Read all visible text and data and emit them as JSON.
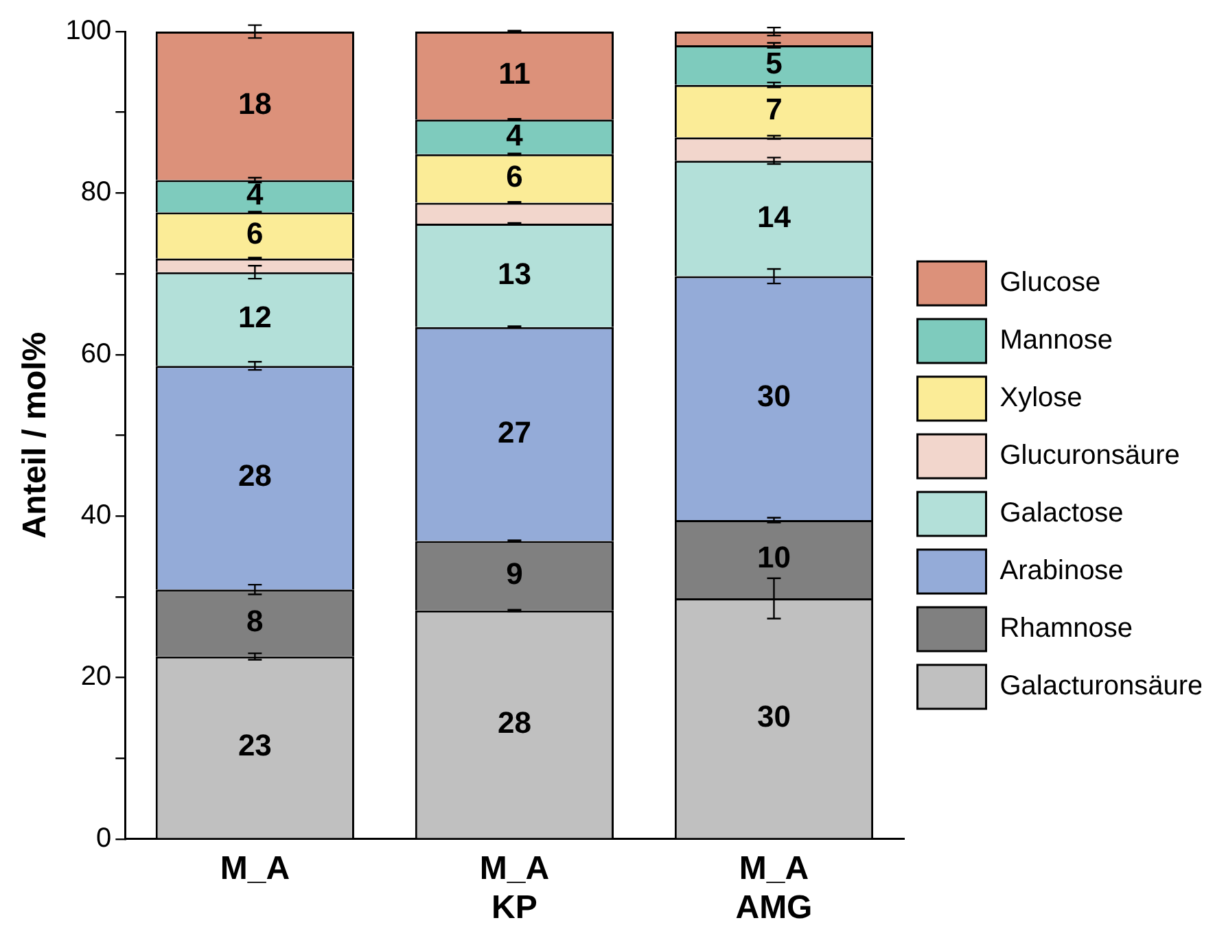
{
  "chart_data": {
    "type": "bar",
    "stacked": true,
    "ylabel": "Anteil / mol%",
    "categories": [
      "M_A",
      "M_A KP",
      "M_A AMG"
    ],
    "ylim": [
      0,
      100
    ],
    "yticks": [
      0,
      {
        "value": 10,
        "label": null
      },
      20,
      {
        "value": 30,
        "label": null
      },
      40,
      {
        "value": 50,
        "label": null
      },
      60,
      {
        "value": 70,
        "label": null
      },
      80,
      {
        "value": 90,
        "label": null
      },
      100
    ],
    "grid": false,
    "legend": "right",
    "series": [
      {
        "name": "Galacturonsäure",
        "color": "#c0c0c0",
        "values": [
          22.6,
          28.3,
          29.8
        ],
        "errors": [
          0.4,
          0.1,
          2.5
        ],
        "value_labels": [
          "23",
          "28",
          "30"
        ]
      },
      {
        "name": "Rhamnose",
        "color": "#808080",
        "values": [
          8.3,
          8.6,
          9.7
        ],
        "errors": [
          0.6,
          0.1,
          0.3
        ],
        "value_labels": [
          "8",
          "9",
          "10"
        ]
      },
      {
        "name": "Arabinose",
        "color": "#94abd8",
        "values": [
          27.7,
          26.5,
          30.2
        ],
        "errors": [
          0.5,
          0.1,
          0.9
        ],
        "value_labels": [
          "28",
          "27",
          "30"
        ]
      },
      {
        "name": "Galactose",
        "color": "#b3e0d9",
        "values": [
          11.6,
          12.8,
          14.3
        ],
        "errors": [
          0.8,
          0.1,
          0.4
        ],
        "value_labels": [
          "12",
          "13",
          "14"
        ]
      },
      {
        "name": "Glucuronsäure",
        "color": "#f2d6cc",
        "values": [
          1.7,
          2.6,
          2.9
        ],
        "errors": [
          0.1,
          0.1,
          0.2
        ],
        "value_labels": [
          null,
          null,
          null
        ]
      },
      {
        "name": "Xylose",
        "color": "#fbec97",
        "values": [
          5.7,
          6.0,
          6.5
        ],
        "errors": [
          0.1,
          0.1,
          0.3
        ],
        "value_labels": [
          "6",
          "6",
          "7"
        ]
      },
      {
        "name": "Mannose",
        "color": "#7ecbbd",
        "values": [
          4.0,
          4.3,
          4.9
        ],
        "errors": [
          0.3,
          0.1,
          0.3
        ],
        "value_labels": [
          "4",
          "4",
          "5"
        ]
      },
      {
        "name": "Glucose",
        "color": "#dc917a",
        "values": [
          18.4,
          10.9,
          1.7
        ],
        "errors": [
          0.8,
          0.1,
          0.5
        ],
        "value_labels": [
          "18",
          "11",
          null
        ]
      }
    ]
  }
}
